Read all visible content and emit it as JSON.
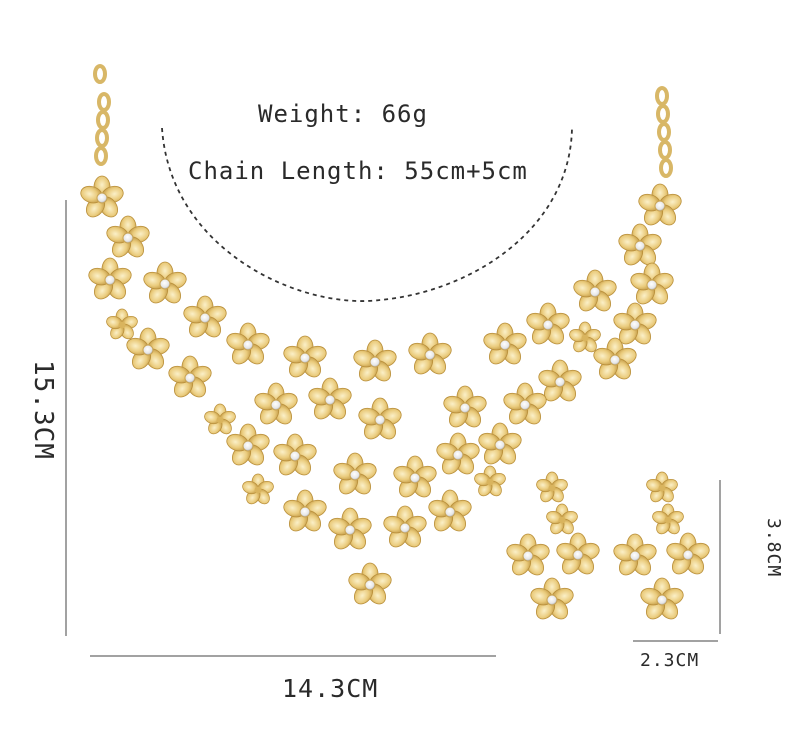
{
  "image": {
    "subject": "gold flower necklace and earrings set",
    "background_color": "#ffffff",
    "gold_light": "#f4e2a6",
    "gold_mid": "#e2c272",
    "gold_dark": "#b98f3a",
    "crystal": "#f7f7f7"
  },
  "specs": {
    "weight": "Weight: 66g",
    "chain_length": "Chain Length: 55cm+5cm"
  },
  "dimensions": {
    "necklace_width": "14.3CM",
    "necklace_height": "15.3CM",
    "earring_width": "2.3CM",
    "earring_height": "3.8CM"
  }
}
